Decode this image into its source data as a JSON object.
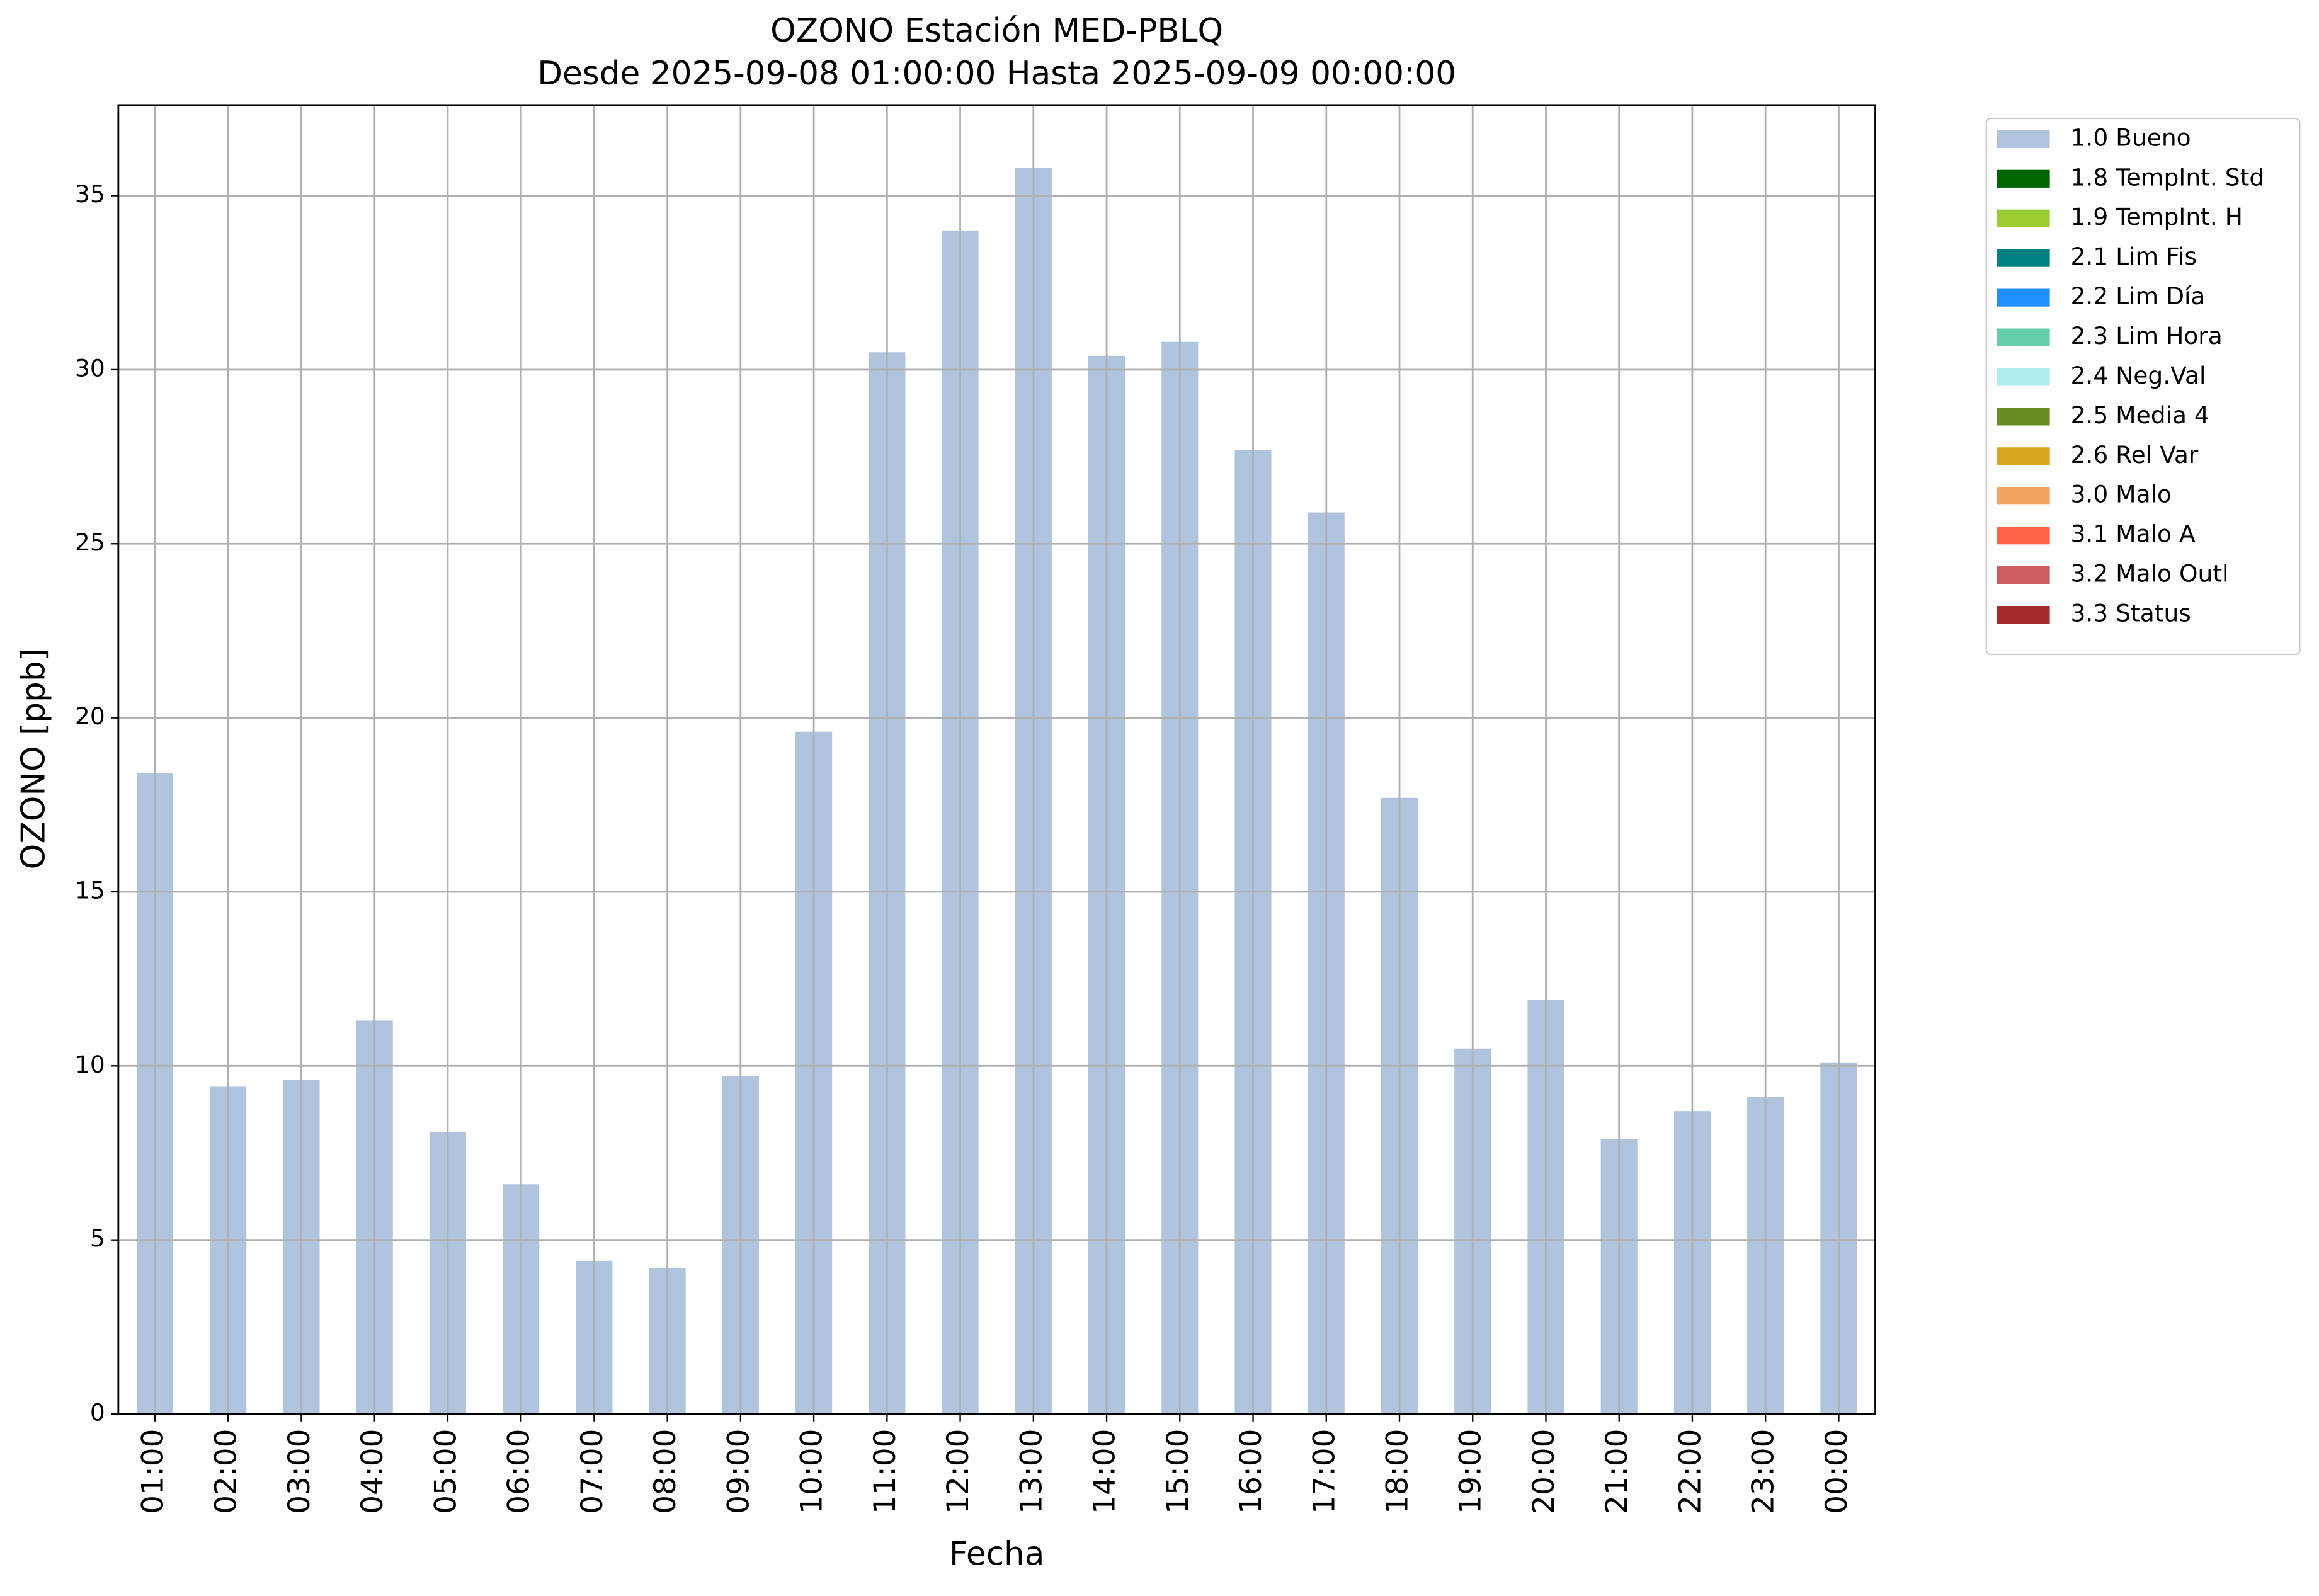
{
  "chart_data": {
    "type": "bar",
    "title": "OZONO Estación MED-PBLQ",
    "subtitle": "Desde 2025-09-08 01:00:00 Hasta 2025-09-09 00:00:00",
    "x_label": "Fecha",
    "y_label": "OZONO [ppb]",
    "categories": [
      "01:00",
      "02:00",
      "03:00",
      "04:00",
      "05:00",
      "06:00",
      "07:00",
      "08:00",
      "09:00",
      "10:00",
      "11:00",
      "12:00",
      "13:00",
      "14:00",
      "15:00",
      "16:00",
      "17:00",
      "18:00",
      "19:00",
      "20:00",
      "21:00",
      "22:00",
      "23:00",
      "00:00"
    ],
    "series": [
      {
        "name": "1.0 Bueno",
        "color": "#b0c4de",
        "values": [
          18.4,
          9.4,
          9.6,
          11.3,
          8.1,
          6.6,
          4.4,
          4.2,
          9.7,
          19.6,
          30.5,
          34.0,
          35.8,
          30.4,
          30.8,
          27.7,
          25.9,
          17.7,
          10.5,
          11.9,
          7.9,
          8.7,
          9.1,
          10.1
        ]
      }
    ],
    "legend_entries": [
      {
        "name": "1.8 TempInt. Std",
        "color": "#006400"
      },
      {
        "name": "1.9 TempInt. H",
        "color": "#9acd32"
      },
      {
        "name": "2.1 Lim Fis",
        "color": "#008080"
      },
      {
        "name": "2.2 Lim Día",
        "color": "#1e90ff"
      },
      {
        "name": "2.3 Lim Hora",
        "color": "#66cdaa"
      },
      {
        "name": "2.4 Neg.Val",
        "color": "#afeeee"
      },
      {
        "name": "2.5 Media 4",
        "color": "#6b8e23"
      },
      {
        "name": "2.6 Rel Var",
        "color": "#daa520"
      },
      {
        "name": "3.0 Malo",
        "color": "#f4a460"
      },
      {
        "name": "3.1 Malo A",
        "color": "#ff6347"
      },
      {
        "name": "3.2 Malo Outl",
        "color": "#cd5c5c"
      },
      {
        "name": "3.3 Status",
        "color": "#a52a2a"
      }
    ],
    "ylim": [
      0,
      37.6
    ],
    "yticks": [
      0,
      5,
      10,
      15,
      20,
      25,
      30,
      35
    ],
    "grid": true,
    "legend_position": "outside upper right"
  }
}
